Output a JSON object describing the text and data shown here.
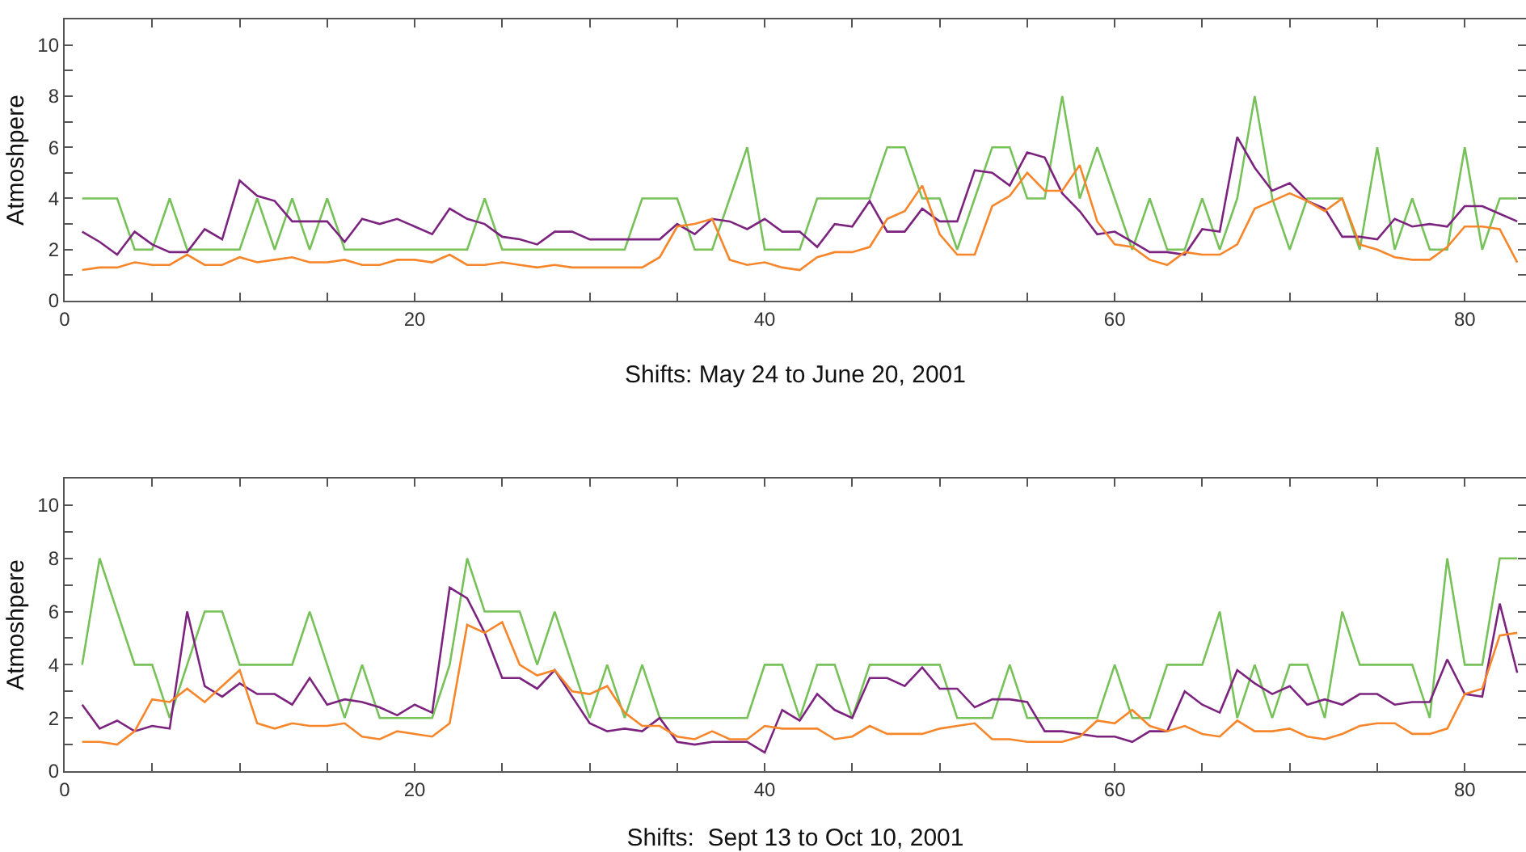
{
  "chart_data": [
    {
      "type": "line",
      "xlabel": "Shifts: May 24 to June 20, 2001",
      "ylabel": "Atmoshpere",
      "x": [
        1,
        2,
        3,
        4,
        5,
        6,
        7,
        8,
        9,
        10,
        11,
        12,
        13,
        14,
        15,
        16,
        17,
        18,
        19,
        20,
        21,
        22,
        23,
        24,
        25,
        26,
        27,
        28,
        29,
        30,
        31,
        32,
        33,
        34,
        35,
        36,
        37,
        38,
        39,
        40,
        41,
        42,
        43,
        44,
        45,
        46,
        47,
        48,
        49,
        50,
        51,
        52,
        53,
        54,
        55,
        56,
        57,
        58,
        59,
        60,
        61,
        62,
        63,
        64,
        65,
        66,
        67,
        68,
        69,
        70,
        71,
        72,
        73,
        74,
        75,
        76,
        77,
        78,
        79,
        80,
        81,
        82,
        83
      ],
      "series": [
        {
          "color": "#77c159",
          "values": [
            4,
            4,
            4,
            2,
            2,
            4,
            2,
            2,
            2,
            2,
            4,
            2,
            4,
            2,
            4,
            2,
            2,
            2,
            2,
            2,
            2,
            2,
            2,
            4,
            2,
            2,
            2,
            2,
            2,
            2,
            2,
            2,
            4,
            4,
            4,
            2,
            2,
            4,
            6,
            2,
            2,
            2,
            4,
            4,
            4,
            4,
            6,
            6,
            4,
            4,
            2,
            4,
            6,
            6,
            4,
            4,
            8,
            4,
            6,
            4,
            2,
            4,
            2,
            2,
            4,
            2,
            4,
            8,
            4,
            2,
            4,
            4,
            4,
            2,
            6,
            2,
            4,
            2,
            2,
            6,
            2,
            4,
            4
          ]
        },
        {
          "color": "#7b237e",
          "values": [
            2.7,
            2.3,
            1.8,
            2.7,
            2.2,
            1.9,
            1.9,
            2.8,
            2.4,
            4.7,
            4.1,
            3.9,
            3.1,
            3.1,
            3.1,
            2.3,
            3.2,
            3.0,
            3.2,
            2.9,
            2.6,
            3.6,
            3.2,
            3.0,
            2.5,
            2.4,
            2.2,
            2.7,
            2.7,
            2.4,
            2.4,
            2.4,
            2.4,
            2.4,
            3.0,
            2.6,
            3.2,
            3.1,
            2.8,
            3.2,
            2.7,
            2.7,
            2.1,
            3.0,
            2.9,
            3.9,
            2.7,
            2.7,
            3.6,
            3.1,
            3.1,
            5.1,
            5.0,
            4.5,
            5.8,
            5.6,
            4.2,
            3.5,
            2.6,
            2.7,
            2.3,
            1.9,
            1.9,
            1.8,
            2.8,
            2.7,
            6.4,
            5.2,
            4.3,
            4.6,
            3.9,
            3.6,
            2.5,
            2.5,
            2.4,
            3.2,
            2.9,
            3.0,
            2.9,
            3.7,
            3.7,
            3.4,
            3.1
          ]
        },
        {
          "color": "#f7862a",
          "values": [
            1.2,
            1.3,
            1.3,
            1.5,
            1.4,
            1.4,
            1.8,
            1.4,
            1.4,
            1.7,
            1.5,
            1.6,
            1.7,
            1.5,
            1.5,
            1.6,
            1.4,
            1.4,
            1.6,
            1.6,
            1.5,
            1.8,
            1.4,
            1.4,
            1.5,
            1.4,
            1.3,
            1.4,
            1.3,
            1.3,
            1.3,
            1.3,
            1.3,
            1.7,
            2.9,
            3.0,
            3.2,
            1.6,
            1.4,
            1.5,
            1.3,
            1.2,
            1.7,
            1.9,
            1.9,
            2.1,
            3.2,
            3.5,
            4.5,
            2.6,
            1.8,
            1.8,
            3.7,
            4.1,
            5.0,
            4.3,
            4.3,
            5.3,
            3.1,
            2.2,
            2.1,
            1.6,
            1.4,
            1.9,
            1.8,
            1.8,
            2.2,
            3.6,
            3.9,
            4.2,
            3.9,
            3.5,
            4.0,
            2.2,
            2.0,
            1.7,
            1.6,
            1.6,
            2.1,
            2.9,
            2.9,
            2.8,
            1.5
          ]
        }
      ],
      "xlim": [
        0,
        83.5
      ],
      "ylim": [
        0,
        11
      ],
      "xticks": [
        0,
        {
          "value": 5,
          "label": null
        },
        {
          "value": 10,
          "label": null
        },
        {
          "value": 15,
          "label": null
        },
        20,
        {
          "value": 25,
          "label": null
        },
        {
          "value": 30,
          "label": null
        },
        {
          "value": 35,
          "label": null
        },
        40,
        {
          "value": 45,
          "label": null
        },
        {
          "value": 50,
          "label": null
        },
        {
          "value": 55,
          "label": null
        },
        60,
        {
          "value": 65,
          "label": null
        },
        {
          "value": 70,
          "label": null
        },
        {
          "value": 75,
          "label": null
        },
        80
      ],
      "yticks": [
        0,
        {
          "value": 1,
          "label": null
        },
        2,
        {
          "value": 3,
          "label": null
        },
        4,
        {
          "value": 5,
          "label": null
        },
        6,
        {
          "value": 7,
          "label": null
        },
        8,
        {
          "value": 9,
          "label": null
        },
        10,
        {
          "value": 11,
          "label": null
        }
      ],
      "line_style": "solid",
      "marker": "none"
    },
    {
      "type": "line",
      "xlabel": "Shifts:  Sept 13 to Oct 10, 2001",
      "ylabel": "Atmoshpere",
      "x": [
        1,
        2,
        3,
        4,
        5,
        6,
        7,
        8,
        9,
        10,
        11,
        12,
        13,
        14,
        15,
        16,
        17,
        18,
        19,
        20,
        21,
        22,
        23,
        24,
        25,
        26,
        27,
        28,
        29,
        30,
        31,
        32,
        33,
        34,
        35,
        36,
        37,
        38,
        39,
        40,
        41,
        42,
        43,
        44,
        45,
        46,
        47,
        48,
        49,
        50,
        51,
        52,
        53,
        54,
        55,
        56,
        57,
        58,
        59,
        60,
        61,
        62,
        63,
        64,
        65,
        66,
        67,
        68,
        69,
        70,
        71,
        72,
        73,
        74,
        75,
        76,
        77,
        78,
        79,
        80,
        81,
        82,
        83
      ],
      "series": [
        {
          "color": "#77c159",
          "values": [
            4,
            8,
            6,
            4,
            4,
            2,
            4,
            6,
            6,
            4,
            4,
            4,
            4,
            6,
            4,
            2,
            4,
            2,
            2,
            2,
            2,
            4,
            8,
            6,
            6,
            6,
            4,
            6,
            4,
            2,
            4,
            2,
            4,
            2,
            2,
            2,
            2,
            2,
            2,
            4,
            4,
            2,
            4,
            4,
            2,
            4,
            4,
            4,
            4,
            4,
            2,
            2,
            2,
            4,
            2,
            2,
            2,
            2,
            2,
            4,
            2,
            2,
            4,
            4,
            4,
            6,
            2,
            4,
            2,
            4,
            4,
            2,
            6,
            4,
            4,
            4,
            4,
            2,
            8,
            4,
            4,
            8,
            8
          ]
        },
        {
          "color": "#7b237e",
          "values": [
            2.5,
            1.6,
            1.9,
            1.5,
            1.7,
            1.6,
            6.0,
            3.2,
            2.8,
            3.3,
            2.9,
            2.9,
            2.5,
            3.5,
            2.5,
            2.7,
            2.6,
            2.4,
            2.1,
            2.5,
            2.2,
            6.9,
            6.5,
            5.2,
            3.5,
            3.5,
            3.1,
            3.8,
            2.8,
            1.8,
            1.5,
            1.6,
            1.5,
            2.0,
            1.1,
            1.0,
            1.1,
            1.1,
            1.1,
            0.7,
            2.3,
            1.9,
            2.9,
            2.3,
            2.0,
            3.5,
            3.5,
            3.2,
            3.9,
            3.1,
            3.1,
            2.4,
            2.7,
            2.7,
            2.6,
            1.5,
            1.5,
            1.4,
            1.3,
            1.3,
            1.1,
            1.5,
            1.5,
            3.0,
            2.5,
            2.2,
            3.8,
            3.3,
            2.9,
            3.2,
            2.5,
            2.7,
            2.5,
            2.9,
            2.9,
            2.5,
            2.6,
            2.6,
            4.2,
            2.9,
            2.8,
            6.3,
            3.7
          ]
        },
        {
          "color": "#f7862a",
          "values": [
            1.1,
            1.1,
            1.0,
            1.5,
            2.7,
            2.6,
            3.1,
            2.6,
            3.2,
            3.8,
            1.8,
            1.6,
            1.8,
            1.7,
            1.7,
            1.8,
            1.3,
            1.2,
            1.5,
            1.4,
            1.3,
            1.8,
            5.5,
            5.2,
            5.6,
            4.0,
            3.6,
            3.8,
            3.0,
            2.9,
            3.2,
            2.2,
            1.7,
            1.7,
            1.3,
            1.2,
            1.5,
            1.2,
            1.2,
            1.7,
            1.6,
            1.6,
            1.6,
            1.2,
            1.3,
            1.7,
            1.4,
            1.4,
            1.4,
            1.6,
            1.7,
            1.8,
            1.2,
            1.2,
            1.1,
            1.1,
            1.1,
            1.3,
            1.9,
            1.8,
            2.3,
            1.7,
            1.5,
            1.7,
            1.4,
            1.3,
            1.9,
            1.5,
            1.5,
            1.6,
            1.3,
            1.2,
            1.4,
            1.7,
            1.8,
            1.8,
            1.4,
            1.4,
            1.6,
            2.9,
            3.1,
            5.1,
            5.2
          ]
        }
      ],
      "xlim": [
        0,
        83.5
      ],
      "ylim": [
        0,
        11
      ],
      "xticks": [
        0,
        {
          "value": 5,
          "label": null
        },
        {
          "value": 10,
          "label": null
        },
        {
          "value": 15,
          "label": null
        },
        20,
        {
          "value": 25,
          "label": null
        },
        {
          "value": 30,
          "label": null
        },
        {
          "value": 35,
          "label": null
        },
        40,
        {
          "value": 45,
          "label": null
        },
        {
          "value": 50,
          "label": null
        },
        {
          "value": 55,
          "label": null
        },
        60,
        {
          "value": 65,
          "label": null
        },
        {
          "value": 70,
          "label": null
        },
        {
          "value": 75,
          "label": null
        },
        80
      ],
      "yticks": [
        0,
        {
          "value": 1,
          "label": null
        },
        2,
        {
          "value": 3,
          "label": null
        },
        4,
        {
          "value": 5,
          "label": null
        },
        6,
        {
          "value": 7,
          "label": null
        },
        8,
        {
          "value": 9,
          "label": null
        },
        10,
        {
          "value": 11,
          "label": null
        }
      ],
      "line_style": "solid",
      "marker": "none"
    }
  ]
}
